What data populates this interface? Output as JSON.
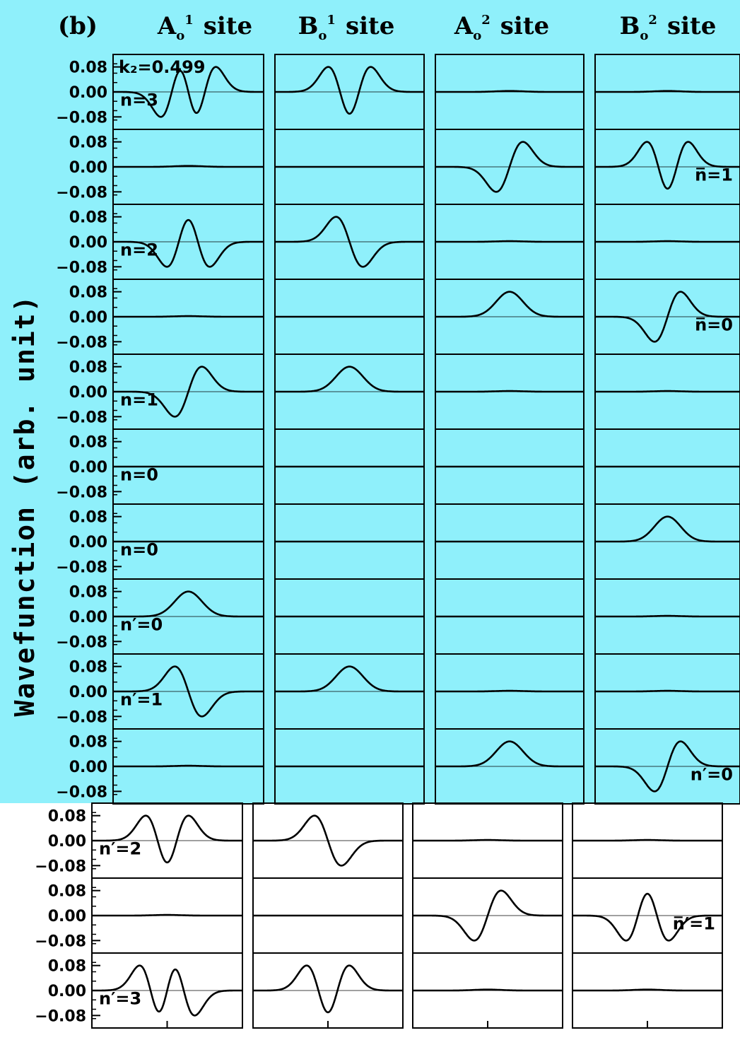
{
  "panel_label": "(b)",
  "ylabel": "Wavefunction  (arb.  unit)",
  "kz_label": "k₂=0.499",
  "columns": [
    {
      "base": "A",
      "sub": "o",
      "sup": "1",
      "suffix": "site"
    },
    {
      "base": "B",
      "sub": "o",
      "sup": "1",
      "suffix": "site"
    },
    {
      "base": "A",
      "sub": "o",
      "sup": "2",
      "suffix": "site"
    },
    {
      "base": "B",
      "sub": "o",
      "sup": "2",
      "suffix": "site"
    }
  ],
  "tick_labels": [
    "0.08",
    "0.00",
    "−0.08"
  ],
  "colors": {
    "upper_background": "#8ff0fb",
    "lower_background": "#ffffff",
    "line": "#000000"
  },
  "chart_data": {
    "type": "line",
    "yticks": [
      0.08,
      0.0,
      -0.08
    ],
    "ylim": [
      -0.12,
      0.12
    ],
    "x_range": [
      -1,
      1
    ],
    "grid": false,
    "rows": [
      {
        "labels": [
          {
            "col": 0,
            "text": "n=3"
          }
        ],
        "cells": [
          {
            "n": 3,
            "amp": 0.08,
            "c": 0.0
          },
          {
            "n": 2,
            "amp": 0.08,
            "c": 0.0
          },
          {
            "n": 0,
            "amp": 0.003,
            "c": 0.0
          },
          {
            "n": 0,
            "amp": 0.003,
            "c": 0.0
          }
        ]
      },
      {
        "labels": [
          {
            "col": 3,
            "text": "n̅=1"
          }
        ],
        "cells": [
          {
            "n": 0,
            "amp": 0.003,
            "c": 0.0
          },
          {
            "n": 0,
            "amp": 0.0,
            "c": 0.0
          },
          {
            "n": 1,
            "amp": 0.08,
            "c": 0.0
          },
          {
            "n": 2,
            "amp": 0.08,
            "c": 0.0
          }
        ]
      },
      {
        "labels": [
          {
            "col": 0,
            "text": "n=2"
          }
        ],
        "cells": [
          {
            "n": 2,
            "amp": -0.08,
            "c": 0.0
          },
          {
            "n": 1,
            "amp": -0.08,
            "c": 0.0
          },
          {
            "n": 0,
            "amp": 0.002,
            "c": 0.0
          },
          {
            "n": 0,
            "amp": 0.002,
            "c": 0.0
          }
        ]
      },
      {
        "labels": [
          {
            "col": 3,
            "text": "n̅=0"
          }
        ],
        "cells": [
          {
            "n": 0,
            "amp": 0.002,
            "c": 0.0
          },
          {
            "n": 0,
            "amp": 0.0,
            "c": 0.0
          },
          {
            "n": 0,
            "amp": 0.08,
            "c": 0.0
          },
          {
            "n": 1,
            "amp": 0.08,
            "c": 0.0
          }
        ]
      },
      {
        "labels": [
          {
            "col": 0,
            "text": "n=1"
          }
        ],
        "cells": [
          {
            "n": 1,
            "amp": 0.08,
            "c": 0.0
          },
          {
            "n": 0,
            "amp": 0.08,
            "c": 0.0
          },
          {
            "n": 0,
            "amp": 0.002,
            "c": 0.0
          },
          {
            "n": 0,
            "amp": 0.002,
            "c": 0.0
          }
        ]
      },
      {
        "labels": [
          {
            "col": 0,
            "text": "n=0"
          }
        ],
        "cells": [
          {
            "n": 0,
            "amp": 0.0,
            "c": 0.0
          },
          {
            "n": 0,
            "amp": 0.0,
            "c": 0.0
          },
          {
            "n": 0,
            "amp": 0.0,
            "c": 0.0
          },
          {
            "n": 0,
            "amp": 0.0,
            "c": 0.0
          }
        ]
      },
      {
        "labels": [
          {
            "col": 0,
            "text": "n=0"
          }
        ],
        "cells": [
          {
            "n": 0,
            "amp": 0.0,
            "c": 0.0
          },
          {
            "n": 0,
            "amp": 0.0,
            "c": 0.0
          },
          {
            "n": 0,
            "amp": 0.0,
            "c": 0.0
          },
          {
            "n": 0,
            "amp": 0.08,
            "c": 0.0
          }
        ]
      },
      {
        "labels": [
          {
            "col": 0,
            "text": "n′=0"
          }
        ],
        "cells": [
          {
            "n": 0,
            "amp": 0.08,
            "c": 0.0
          },
          {
            "n": 0,
            "amp": 0.0,
            "c": 0.0
          },
          {
            "n": 0,
            "amp": 0.0,
            "c": 0.0
          },
          {
            "n": 0,
            "amp": 0.002,
            "c": 0.0
          }
        ]
      },
      {
        "labels": [
          {
            "col": 0,
            "text": "n′=1"
          }
        ],
        "cells": [
          {
            "n": 1,
            "amp": -0.08,
            "c": 0.0
          },
          {
            "n": 0,
            "amp": 0.08,
            "c": 0.0
          },
          {
            "n": 0,
            "amp": 0.002,
            "c": 0.0
          },
          {
            "n": 0,
            "amp": 0.002,
            "c": 0.0
          }
        ]
      },
      {
        "labels": [
          {
            "col": 3,
            "text": "n′=0"
          }
        ],
        "cells": [
          {
            "n": 0,
            "amp": 0.002,
            "c": 0.0
          },
          {
            "n": 0,
            "amp": 0.0,
            "c": 0.0
          },
          {
            "n": 0,
            "amp": 0.08,
            "c": 0.0
          },
          {
            "n": 1,
            "amp": 0.08,
            "c": 0.0
          }
        ]
      },
      {
        "labels": [
          {
            "col": 0,
            "text": "n′=2"
          }
        ],
        "cells": [
          {
            "n": 2,
            "amp": 0.08,
            "c": 0.0
          },
          {
            "n": 1,
            "amp": -0.08,
            "c": 0.0
          },
          {
            "n": 0,
            "amp": 0.002,
            "c": 0.0
          },
          {
            "n": 0,
            "amp": 0.002,
            "c": 0.0
          }
        ]
      },
      {
        "labels": [
          {
            "col": 3,
            "text": "n̅′=1"
          }
        ],
        "cells": [
          {
            "n": 0,
            "amp": 0.002,
            "c": 0.0
          },
          {
            "n": 0,
            "amp": 0.0,
            "c": 0.0
          },
          {
            "n": 1,
            "amp": 0.08,
            "c": 0.0
          },
          {
            "n": 2,
            "amp": -0.08,
            "c": 0.0
          }
        ]
      },
      {
        "labels": [
          {
            "col": 0,
            "text": "n′=3"
          }
        ],
        "cells": [
          {
            "n": 3,
            "amp": -0.08,
            "c": 0.0
          },
          {
            "n": 2,
            "amp": 0.08,
            "c": 0.0
          },
          {
            "n": 0,
            "amp": 0.003,
            "c": 0.0
          },
          {
            "n": 0,
            "amp": 0.003,
            "c": 0.0
          }
        ]
      }
    ]
  }
}
